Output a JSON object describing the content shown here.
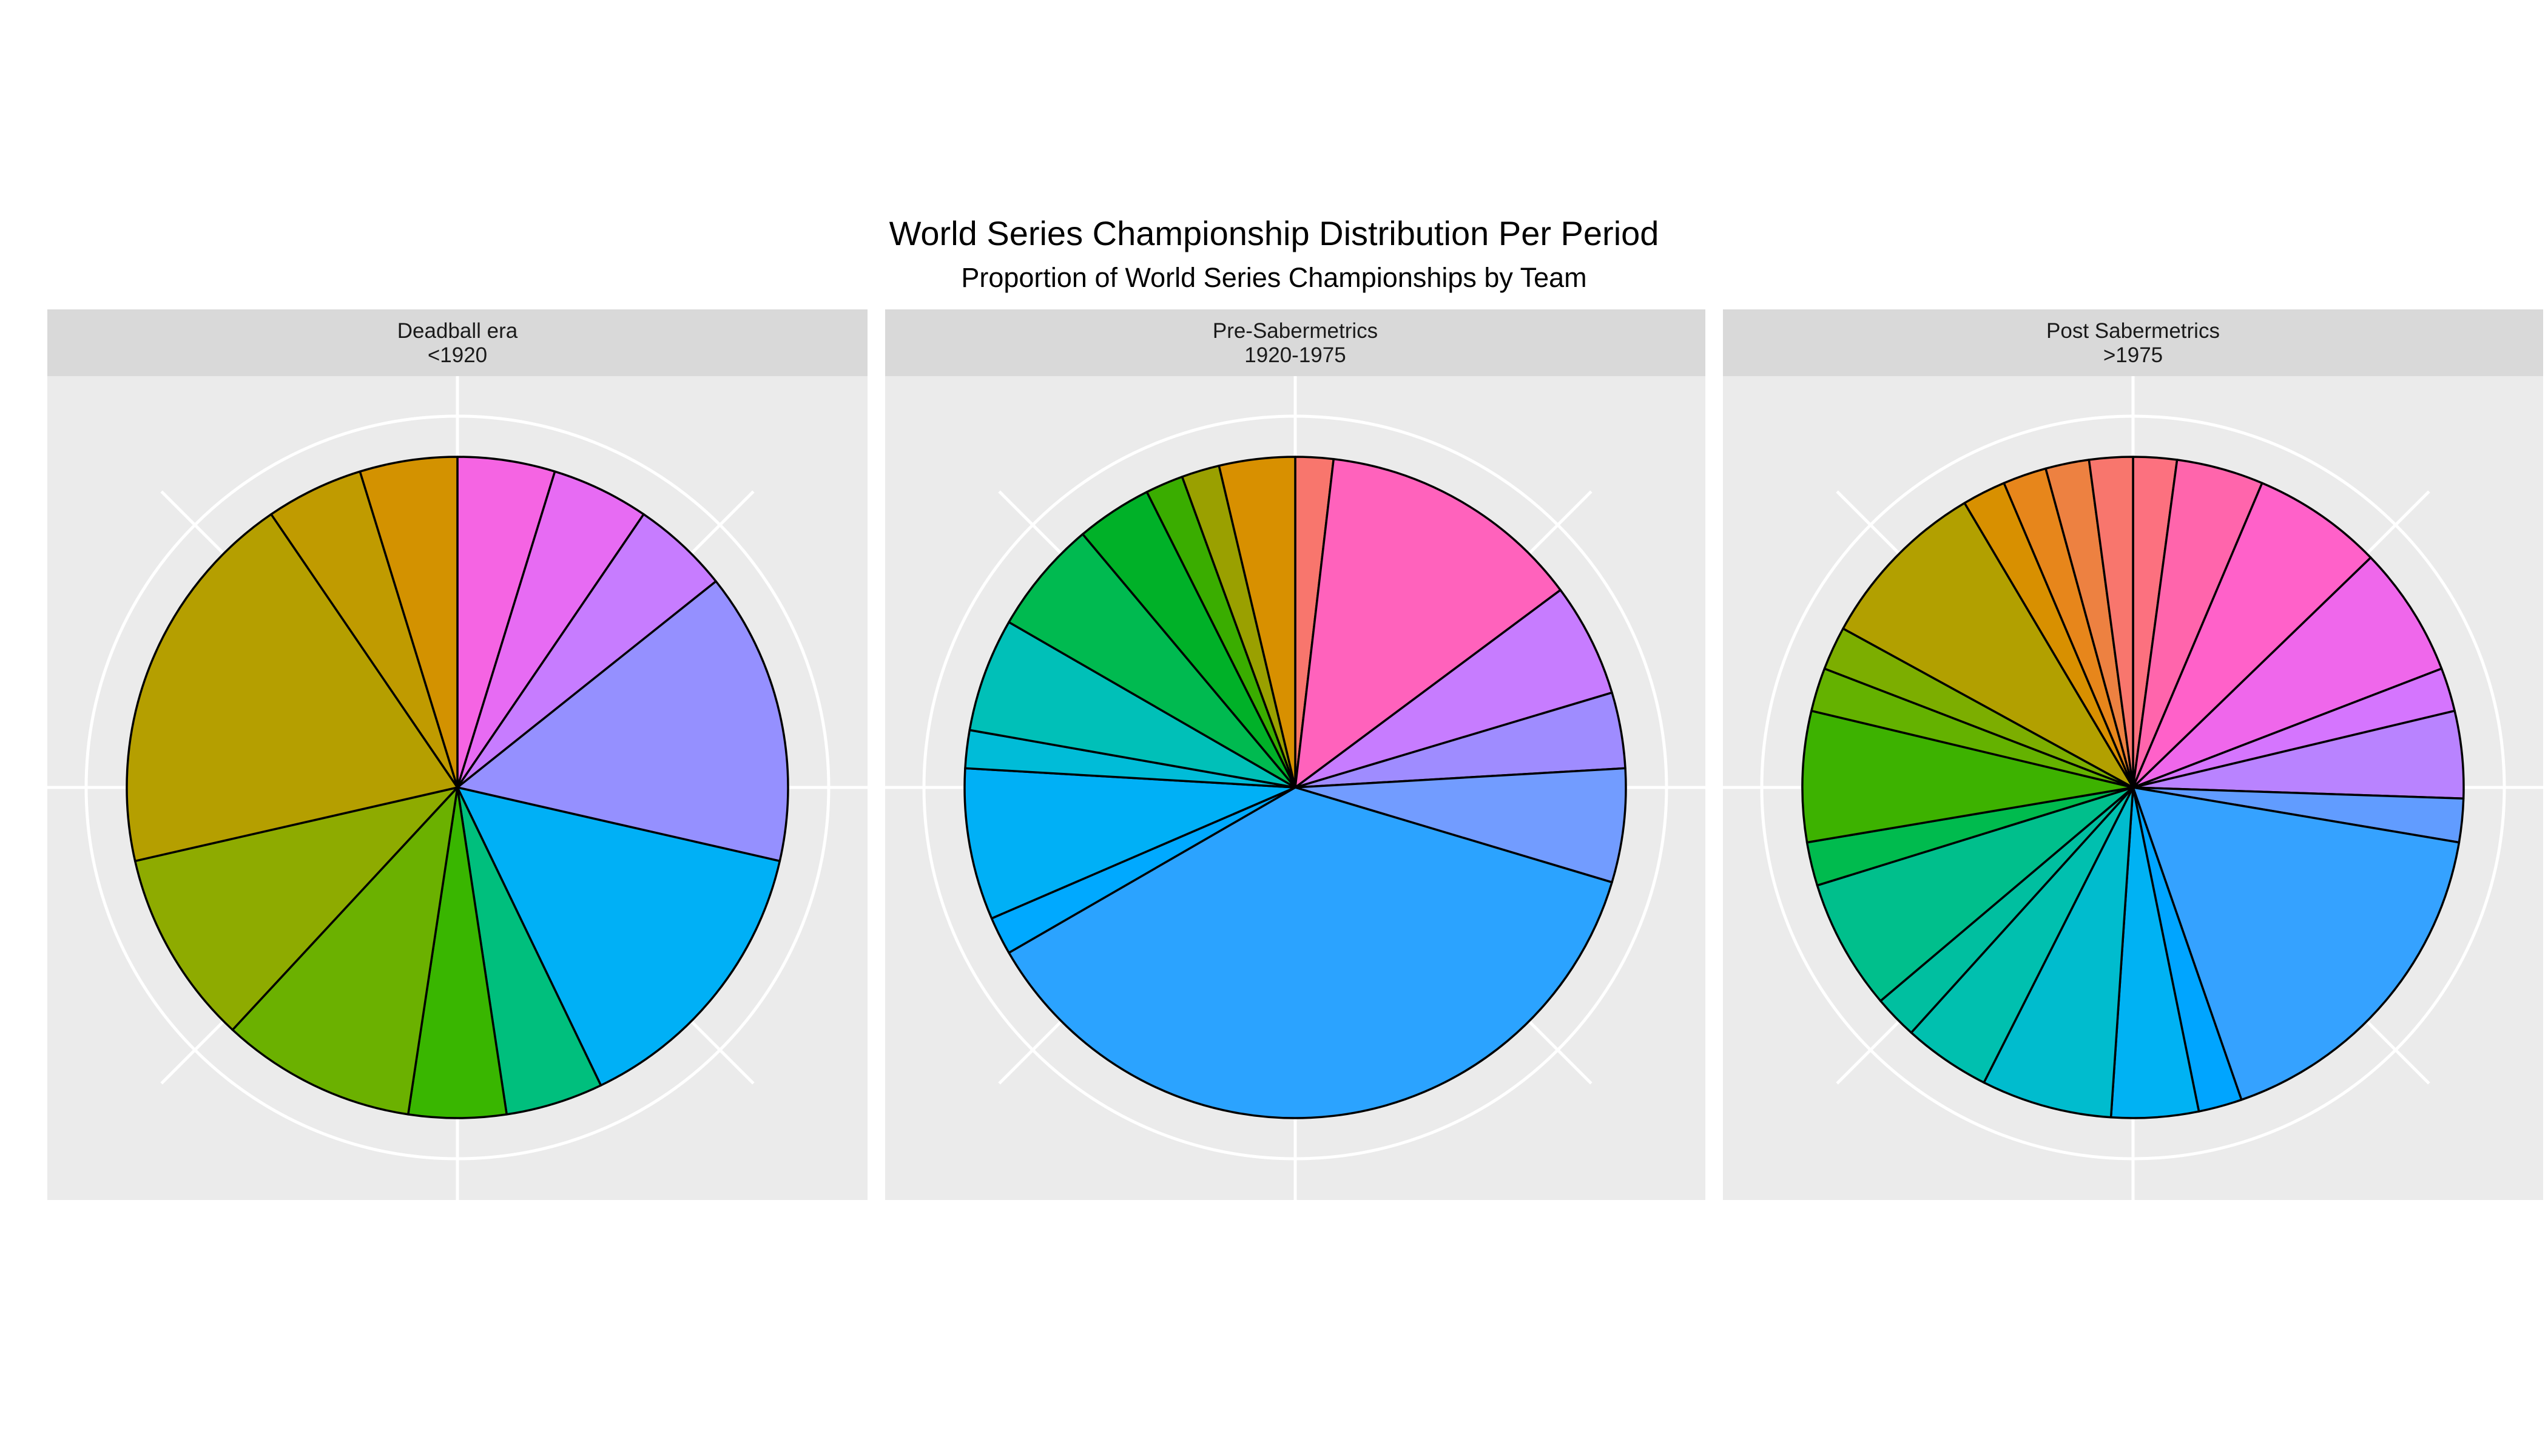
{
  "title": "World Series Championship Distribution Per Period",
  "subtitle": "Proportion of World Series Championships by Team",
  "chart_data": [
    {
      "type": "pie",
      "facet_title": "Deadball era",
      "facet_subtitle": "<1920",
      "direction": "clockwise-from-top",
      "slices": [
        {
          "value": 1,
          "color": "#F564E3"
        },
        {
          "value": 1,
          "color": "#E76BF3"
        },
        {
          "value": 1,
          "color": "#C77CFF"
        },
        {
          "value": 3,
          "color": "#9590FF"
        },
        {
          "value": 3,
          "color": "#00B0F6"
        },
        {
          "value": 1,
          "color": "#00BF7D"
        },
        {
          "value": 1,
          "color": "#39B600"
        },
        {
          "value": 2,
          "color": "#6BB100"
        },
        {
          "value": 2,
          "color": "#8EAB00"
        },
        {
          "value": 4,
          "color": "#B59F00"
        },
        {
          "value": 1,
          "color": "#C09B00"
        },
        {
          "value": 1,
          "color": "#D39200"
        }
      ]
    },
    {
      "type": "pie",
      "facet_title": "Pre-Sabermetrics",
      "facet_subtitle": "1920-1975",
      "direction": "clockwise-from-top",
      "slices": [
        {
          "value": 1,
          "color": "#F8766D"
        },
        {
          "value": 7,
          "color": "#FF62BC"
        },
        {
          "value": 3,
          "color": "#C77CFF"
        },
        {
          "value": 2,
          "color": "#9F8CFF"
        },
        {
          "value": 3,
          "color": "#729CFF"
        },
        {
          "value": 20,
          "color": "#2BA3FF"
        },
        {
          "value": 1,
          "color": "#00A9FF"
        },
        {
          "value": 4,
          "color": "#00B0F6"
        },
        {
          "value": 1,
          "color": "#00BCD8"
        },
        {
          "value": 3,
          "color": "#00C0B8"
        },
        {
          "value": 3,
          "color": "#00BA50"
        },
        {
          "value": 2,
          "color": "#00B128"
        },
        {
          "value": 1,
          "color": "#3AAD00"
        },
        {
          "value": 1,
          "color": "#9AA000"
        },
        {
          "value": 2,
          "color": "#D89000"
        }
      ]
    },
    {
      "type": "pie",
      "facet_title": "Post Sabermetrics",
      "facet_subtitle": ">1975",
      "direction": "clockwise-from-top",
      "slices": [
        {
          "value": 1,
          "color": "#FC717F"
        },
        {
          "value": 2,
          "color": "#FF65AC"
        },
        {
          "value": 3,
          "color": "#FF61C9"
        },
        {
          "value": 3,
          "color": "#EF67EB"
        },
        {
          "value": 1,
          "color": "#D575FE"
        },
        {
          "value": 2,
          "color": "#B983FF"
        },
        {
          "value": 1,
          "color": "#619CFF"
        },
        {
          "value": 8,
          "color": "#35A2FF"
        },
        {
          "value": 1,
          "color": "#00A5FF"
        },
        {
          "value": 2,
          "color": "#00B2F3"
        },
        {
          "value": 3,
          "color": "#00BCCE"
        },
        {
          "value": 2,
          "color": "#00C0AF"
        },
        {
          "value": 1,
          "color": "#00BFA0"
        },
        {
          "value": 3,
          "color": "#00BF8C"
        },
        {
          "value": 1,
          "color": "#00BB4E"
        },
        {
          "value": 3,
          "color": "#3DB200"
        },
        {
          "value": 1,
          "color": "#64B200"
        },
        {
          "value": 1,
          "color": "#7CAE00"
        },
        {
          "value": 4,
          "color": "#B2A000"
        },
        {
          "value": 1,
          "color": "#D89000"
        },
        {
          "value": 1,
          "color": "#E7861B"
        },
        {
          "value": 1,
          "color": "#ED8141"
        },
        {
          "value": 1,
          "color": "#F8766D"
        }
      ]
    }
  ]
}
